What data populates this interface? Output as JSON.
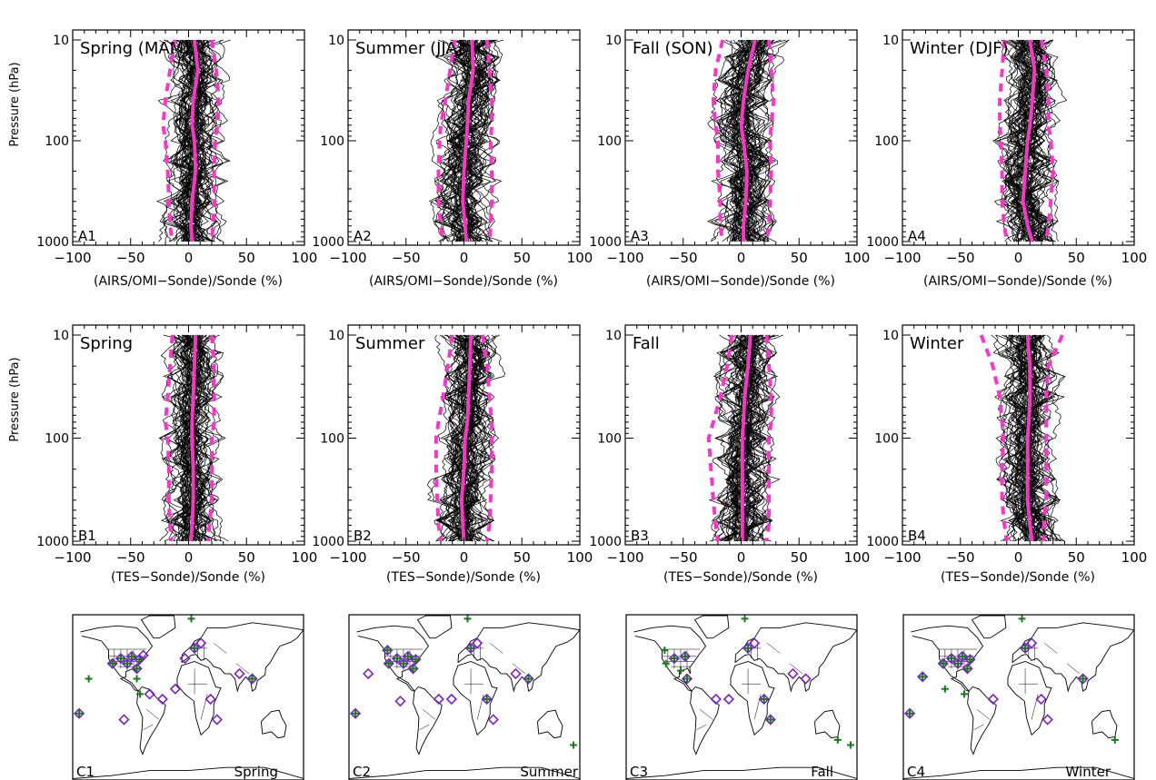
{
  "chart_data": {
    "type": "line",
    "colors": {
      "individual": "#000000",
      "mean": "#ff33cc",
      "stdev": "#ff33cc",
      "median": "#1a7a1a",
      "site_marker_plus": "#1a7a1a",
      "site_marker_diamond": "#7a22c8"
    },
    "rows": [
      {
        "id": "A",
        "xlabel": "(AIRS/OMI−Sonde)/Sonde (%)",
        "ylabel": "Pressure (hPa)",
        "xlim": [
          -100,
          100
        ],
        "ylim": [
          1000,
          10
        ],
        "y_scale": "log",
        "xticks": [
          "−100",
          "−50",
          "0",
          "50",
          "100"
        ],
        "yticks": [
          "10",
          "100",
          "1000"
        ],
        "panels": [
          {
            "tag": "A1",
            "title": "Spring (MAM)",
            "mean": {
              "p": [
                10,
                20,
                40,
                70,
                100,
                200,
                400,
                700,
                1000
              ],
              "x": [
                5,
                8,
                4,
                3,
                5,
                6,
                3,
                2,
                3
              ]
            },
            "stdev_low": {
              "p": [
                10,
                20,
                40,
                70,
                100,
                200,
                400,
                700,
                1000
              ],
              "x": [
                -12,
                -16,
                -20,
                -22,
                -20,
                -18,
                -17,
                -16,
                -14
              ]
            },
            "stdev_high": {
              "p": [
                10,
                20,
                40,
                70,
                100,
                200,
                400,
                700,
                1000
              ],
              "x": [
                20,
                24,
                26,
                25,
                23,
                22,
                22,
                21,
                20
              ]
            }
          },
          {
            "tag": "A2",
            "title": "Summer (JJA)",
            "mean": {
              "p": [
                10,
                20,
                40,
                70,
                100,
                200,
                400,
                700,
                1000
              ],
              "x": [
                7,
                8,
                4,
                3,
                2,
                0,
                -1,
                1,
                2
              ]
            },
            "stdev_low": {
              "p": [
                10,
                20,
                40,
                70,
                100,
                200,
                400,
                700,
                1000
              ],
              "x": [
                -8,
                -12,
                -16,
                -20,
                -21,
                -22,
                -22,
                -20,
                -18
              ]
            },
            "stdev_high": {
              "p": [
                10,
                20,
                40,
                70,
                100,
                200,
                400,
                700,
                1000
              ],
              "x": [
                20,
                22,
                24,
                24,
                23,
                24,
                24,
                23,
                22
              ]
            }
          },
          {
            "tag": "A3",
            "title": "Fall (SON)",
            "mean": {
              "p": [
                10,
                20,
                40,
                70,
                100,
                200,
                400,
                700,
                1000
              ],
              "x": [
                12,
                6,
                2,
                0,
                2,
                5,
                4,
                2,
                2
              ]
            },
            "stdev_low": {
              "p": [
                10,
                20,
                40,
                70,
                100,
                200,
                400,
                700,
                1000
              ],
              "x": [
                -16,
                -22,
                -24,
                -22,
                -20,
                -20,
                -18,
                -18,
                -16
              ]
            },
            "stdev_high": {
              "p": [
                10,
                20,
                40,
                70,
                100,
                200,
                400,
                700,
                1000
              ],
              "x": [
                24,
                26,
                28,
                26,
                25,
                26,
                25,
                24,
                22
              ]
            }
          },
          {
            "tag": "A4",
            "title": "Winter (DJF)",
            "mean": {
              "p": [
                10,
                20,
                40,
                70,
                100,
                200,
                400,
                700,
                1000
              ],
              "x": [
                10,
                14,
                12,
                10,
                8,
                6,
                4,
                8,
                12
              ]
            },
            "stdev_low": {
              "p": [
                10,
                20,
                40,
                70,
                100,
                200,
                400,
                700,
                1000
              ],
              "x": [
                -12,
                -14,
                -16,
                -16,
                -15,
                -14,
                -14,
                -12,
                -10
              ]
            },
            "stdev_high": {
              "p": [
                10,
                20,
                40,
                70,
                100,
                200,
                400,
                700,
                1000
              ],
              "x": [
                20,
                24,
                26,
                26,
                28,
                30,
                28,
                26,
                24
              ]
            }
          }
        ]
      },
      {
        "id": "B",
        "xlabel": "(TES−Sonde)/Sonde (%)",
        "ylabel": "Pressure (hPa)",
        "xlim": [
          -100,
          100
        ],
        "ylim": [
          1000,
          10
        ],
        "y_scale": "log",
        "xticks": [
          "−100",
          "−50",
          "0",
          "50",
          "100"
        ],
        "yticks": [
          "10",
          "100",
          "1000"
        ],
        "panels": [
          {
            "tag": "B1",
            "title": "Spring",
            "mean": {
              "p": [
                10,
                20,
                40,
                70,
                100,
                200,
                400,
                700,
                1000
              ],
              "x": [
                6,
                5,
                4,
                3,
                3,
                4,
                4,
                3,
                2
              ]
            },
            "stdev_low": {
              "p": [
                10,
                20,
                40,
                70,
                100,
                200,
                400,
                700,
                1000
              ],
              "x": [
                -14,
                -16,
                -18,
                -20,
                -18,
                -17,
                -17,
                -16,
                -15
              ]
            },
            "stdev_high": {
              "p": [
                10,
                20,
                40,
                70,
                100,
                200,
                400,
                700,
                1000
              ],
              "x": [
                20,
                22,
                22,
                22,
                20,
                20,
                20,
                18,
                17
              ]
            }
          },
          {
            "tag": "B2",
            "title": "Summer",
            "mean": {
              "p": [
                10,
                20,
                40,
                70,
                100,
                200,
                400,
                700,
                1000
              ],
              "x": [
                6,
                5,
                4,
                3,
                1,
                0,
                -2,
                -1,
                0
              ]
            },
            "stdev_low": {
              "p": [
                10,
                20,
                40,
                70,
                100,
                200,
                400,
                700,
                1000
              ],
              "x": [
                -10,
                -14,
                -18,
                -22,
                -24,
                -24,
                -23,
                -22,
                -20
              ]
            },
            "stdev_high": {
              "p": [
                10,
                20,
                40,
                70,
                100,
                200,
                400,
                700,
                1000
              ],
              "x": [
                16,
                20,
                22,
                24,
                24,
                24,
                23,
                22,
                20
              ]
            }
          },
          {
            "tag": "B3",
            "title": "Fall",
            "mean": {
              "p": [
                10,
                20,
                40,
                70,
                100,
                200,
                400,
                700,
                1000
              ],
              "x": [
                8,
                6,
                3,
                2,
                1,
                1,
                1,
                1,
                1
              ]
            },
            "stdev_low": {
              "p": [
                10,
                20,
                40,
                70,
                100,
                200,
                400,
                700,
                1000
              ],
              "x": [
                -8,
                -12,
                -18,
                -24,
                -28,
                -26,
                -24,
                -22,
                -20
              ]
            },
            "stdev_high": {
              "p": [
                10,
                20,
                40,
                70,
                100,
                200,
                400,
                700,
                1000
              ],
              "x": [
                22,
                24,
                26,
                26,
                24,
                24,
                24,
                24,
                22
              ]
            }
          },
          {
            "tag": "B4",
            "title": "Winter",
            "mean": {
              "p": [
                10,
                20,
                40,
                70,
                100,
                200,
                400,
                700,
                1000
              ],
              "x": [
                8,
                10,
                10,
                9,
                8,
                8,
                8,
                10,
                12
              ]
            },
            "stdev_low": {
              "p": [
                10,
                20,
                40,
                70,
                100,
                200,
                400,
                700,
                1000
              ],
              "x": [
                -32,
                -22,
                -16,
                -14,
                -13,
                -14,
                -14,
                -12,
                -10
              ]
            },
            "stdev_high": {
              "p": [
                10,
                20,
                40,
                70,
                100,
                200,
                400,
                700,
                1000
              ],
              "x": [
                38,
                26,
                24,
                24,
                24,
                24,
                24,
                22,
                22
              ]
            }
          }
        ]
      }
    ],
    "maps": [
      {
        "tag": "C1",
        "season": "Spring"
      },
      {
        "tag": "C2",
        "season": "Summer"
      },
      {
        "tag": "C3",
        "season": "Fall"
      },
      {
        "tag": "C4",
        "season": "Winter"
      }
    ]
  }
}
